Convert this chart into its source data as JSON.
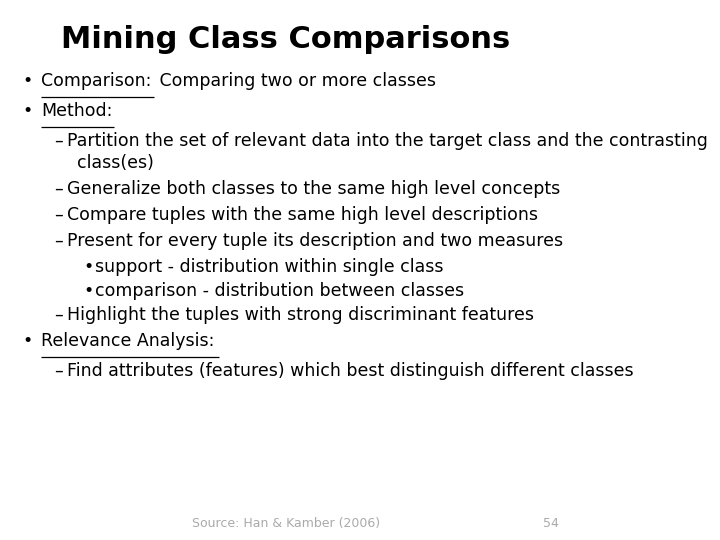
{
  "title": "Mining Class Comparisons",
  "bg_color": "#ffffff",
  "title_fontsize": 22,
  "body_fontsize": 12.5,
  "small_fontsize": 9,
  "footer_text": "Source: Han & Kamber (2006)",
  "footer_number": "54",
  "items": [
    {
      "level": 0,
      "bullet": "•",
      "segments": [
        {
          "t": "Comparison:",
          "u": true
        },
        {
          "t": " Comparing two or more classes",
          "u": false
        }
      ]
    },
    {
      "level": 0,
      "bullet": "•",
      "segments": [
        {
          "t": "Method:",
          "u": true
        }
      ]
    },
    {
      "level": 1,
      "bullet": "–",
      "segments": [
        {
          "t": "Partition the set of relevant data into the target class and the contrasting",
          "u": false
        }
      ],
      "continuation": "class(es)"
    },
    {
      "level": 1,
      "bullet": "–",
      "segments": [
        {
          "t": "Generalize both classes to the same high level concepts",
          "u": false
        }
      ]
    },
    {
      "level": 1,
      "bullet": "–",
      "segments": [
        {
          "t": "Compare tuples with the same high level descriptions",
          "u": false
        }
      ]
    },
    {
      "level": 1,
      "bullet": "–",
      "segments": [
        {
          "t": "Present for every tuple its description and two measures",
          "u": false
        }
      ]
    },
    {
      "level": 2,
      "bullet": "•",
      "segments": [
        {
          "t": "support - distribution within single class",
          "u": false
        }
      ]
    },
    {
      "level": 2,
      "bullet": "•",
      "segments": [
        {
          "t": "comparison - distribution between classes",
          "u": false
        }
      ]
    },
    {
      "level": 1,
      "bullet": "–",
      "segments": [
        {
          "t": "Highlight the tuples with strong discriminant features",
          "u": false
        }
      ]
    },
    {
      "level": 0,
      "bullet": "•",
      "segments": [
        {
          "t": "Relevance Analysis:",
          "u": true
        }
      ]
    },
    {
      "level": 1,
      "bullet": "–",
      "segments": [
        {
          "t": "Find attributes (features) which best distinguish different classes",
          "u": false
        }
      ]
    }
  ]
}
